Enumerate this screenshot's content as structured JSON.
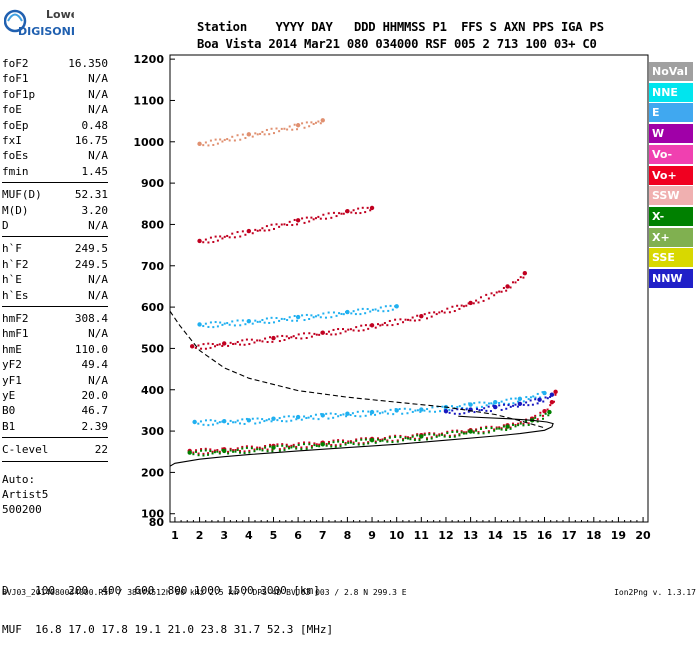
{
  "logo": {
    "line1": "Lowell",
    "line2": "DIGISONDE"
  },
  "header": {
    "labels": "Station    YYYY DAY   DDD HHMMSS P1  FFS S AXN PPS IGA PS",
    "values": "Boa Vista 2014 Mar21 080 034000 RSF 005 2 713 100 03+ C0"
  },
  "params": {
    "group1": [
      {
        "label": "foF2",
        "value": "16.350"
      },
      {
        "label": "foF1",
        "value": "N/A"
      },
      {
        "label": "foF1p",
        "value": "N/A"
      },
      {
        "label": "foE",
        "value": "N/A"
      },
      {
        "label": "foEp",
        "value": "0.48"
      },
      {
        "label": "fxI",
        "value": "16.75"
      },
      {
        "label": "foEs",
        "value": "N/A"
      },
      {
        "label": "fmin",
        "value": "1.45"
      }
    ],
    "group2": [
      {
        "label": "MUF(D)",
        "value": "52.31"
      },
      {
        "label": "M(D)",
        "value": "3.20"
      },
      {
        "label": "D",
        "value": "N/A"
      }
    ],
    "group3": [
      {
        "label": "h`F",
        "value": "249.5"
      },
      {
        "label": "h`F2",
        "value": "249.5"
      },
      {
        "label": "h`E",
        "value": "N/A"
      },
      {
        "label": "h`Es",
        "value": "N/A"
      }
    ],
    "group4": [
      {
        "label": "hmF2",
        "value": "308.4"
      },
      {
        "label": "hmF1",
        "value": "N/A"
      },
      {
        "label": "hmE",
        "value": "110.0"
      },
      {
        "label": "yF2",
        "value": "49.4"
      },
      {
        "label": "yF1",
        "value": "N/A"
      },
      {
        "label": "yE",
        "value": "20.0"
      },
      {
        "label": "B0",
        "value": "46.7"
      },
      {
        "label": "B1",
        "value": "2.39"
      }
    ],
    "group5": [
      {
        "label": "C-level",
        "value": "22"
      }
    ],
    "auto_lines": [
      "Auto:",
      "Artist5",
      "500200"
    ]
  },
  "freq_table": {
    "d_line": "D    100  200  400  600  800 1000 1500 3000 [km]",
    "muf_line": "MUF  16.8 17.0 17.8 19.1 21.0 23.8 31.7 52.3 [MHz]"
  },
  "footer": {
    "left": "BVJ03_2014080034000.RSF / 384fx512h 50 kHz 2.5 km / DPS-4D BVJ03 003 / 2.8 N 299.3 E",
    "right": "Ion2Png v. 1.3.17"
  },
  "legend": [
    {
      "label": "NoVal",
      "color": "#a0a0a0"
    },
    {
      "label": "NNE",
      "color": "#00e5ee"
    },
    {
      "label": "E",
      "color": "#40a8f0"
    },
    {
      "label": "W",
      "color": "#a000a8"
    },
    {
      "label": "Vo-",
      "color": "#f040b0"
    },
    {
      "label": "Vo+",
      "color": "#f00020"
    },
    {
      "label": "SSW",
      "color": "#f0b0b0"
    },
    {
      "label": "X-",
      "color": "#008000"
    },
    {
      "label": "X+",
      "color": "#80b050"
    },
    {
      "label": "SSE",
      "color": "#d8d800"
    },
    {
      "label": "NNW",
      "color": "#2020c8"
    }
  ],
  "chart_data": {
    "type": "scatter",
    "title": "",
    "xlabel": "",
    "ylabel": "",
    "xlim": [
      0.8,
      20.2
    ],
    "ylim": [
      80,
      1210
    ],
    "x_ticks": [
      1,
      2,
      3,
      4,
      5,
      6,
      7,
      8,
      9,
      10,
      11,
      12,
      13,
      14,
      15,
      16,
      17,
      18,
      19,
      20
    ],
    "y_ticks": [
      80,
      100,
      200,
      300,
      400,
      500,
      600,
      700,
      800,
      900,
      1000,
      1100,
      1200
    ],
    "x_tick_labels": [
      "1",
      "2",
      "3",
      "4",
      "5",
      "6",
      "7",
      "8",
      "9",
      "10",
      "11",
      "12",
      "13",
      "14",
      "15",
      "16",
      "17",
      "18",
      "19",
      "20"
    ],
    "y_tick_labels": [
      "80",
      "100",
      "200",
      "300",
      "400",
      "500",
      "600",
      "700",
      "800",
      "900",
      "1000",
      "1100",
      "1200"
    ],
    "grid": false,
    "legend_position": "right",
    "traces": [
      {
        "name": "F2 O-trace",
        "mode": "Vo+",
        "color": "#c80020",
        "points": [
          [
            1.6,
            252
          ],
          [
            3,
            256
          ],
          [
            5,
            264
          ],
          [
            7,
            272
          ],
          [
            9,
            281
          ],
          [
            11,
            290
          ],
          [
            13,
            302
          ],
          [
            14.5,
            314
          ],
          [
            15.5,
            330
          ],
          [
            16,
            348
          ],
          [
            16.3,
            370
          ],
          [
            16.45,
            395
          ]
        ]
      },
      {
        "name": "F2 X-trace",
        "mode": "X-",
        "color": "#008000",
        "points": [
          [
            1.6,
            248
          ],
          [
            3,
            252
          ],
          [
            5,
            260
          ],
          [
            7,
            268
          ],
          [
            9,
            278
          ],
          [
            11,
            287
          ],
          [
            13,
            299
          ],
          [
            14.5,
            311
          ],
          [
            15.5,
            326
          ],
          [
            16.2,
            346
          ]
        ]
      },
      {
        "name": "NNE echoes",
        "mode": "NNE",
        "color": "#20b0f0",
        "points": [
          [
            1.8,
            322
          ],
          [
            3,
            324
          ],
          [
            4,
            326
          ],
          [
            5,
            330
          ],
          [
            6,
            334
          ],
          [
            7,
            338
          ],
          [
            8,
            342
          ],
          [
            9,
            346
          ],
          [
            10,
            350
          ],
          [
            11,
            352
          ],
          [
            12,
            358
          ],
          [
            13,
            364
          ],
          [
            14,
            370
          ],
          [
            15,
            378
          ],
          [
            16,
            392
          ]
        ]
      },
      {
        "name": "NNW echoes",
        "mode": "NNW",
        "color": "#1818c0",
        "points": [
          [
            12,
            348
          ],
          [
            13,
            352
          ],
          [
            14,
            358
          ],
          [
            15,
            366
          ],
          [
            15.8,
            376
          ],
          [
            16.3,
            388
          ]
        ]
      },
      {
        "name": "Second-hop F",
        "mode": "Vo+",
        "color": "#c00020",
        "points": [
          [
            1.7,
            505
          ],
          [
            3,
            512
          ],
          [
            5,
            525
          ],
          [
            7,
            538
          ],
          [
            9,
            556
          ],
          [
            11,
            578
          ],
          [
            13,
            610
          ],
          [
            14.5,
            650
          ],
          [
            15.2,
            682
          ]
        ]
      },
      {
        "name": "Second-hop NNE",
        "mode": "NNE",
        "color": "#20b0f0",
        "points": [
          [
            2,
            558
          ],
          [
            4,
            566
          ],
          [
            6,
            576
          ],
          [
            8,
            588
          ],
          [
            10,
            602
          ]
        ]
      },
      {
        "name": "Third-hop F",
        "mode": "Vo+",
        "color": "#c00020",
        "points": [
          [
            2,
            760
          ],
          [
            4,
            784
          ],
          [
            6,
            810
          ],
          [
            8,
            832
          ],
          [
            9,
            840
          ]
        ]
      },
      {
        "name": "Fourth-hop F",
        "mode": "SSW",
        "color": "#e09070",
        "points": [
          [
            2,
            995
          ],
          [
            4,
            1018
          ],
          [
            6,
            1040
          ],
          [
            7,
            1052
          ]
        ]
      }
    ],
    "profile_curves": [
      {
        "name": "Electron density profile",
        "style": "solid",
        "color": "#000000",
        "points": [
          [
            0.8,
            215
          ],
          [
            1,
            222
          ],
          [
            2,
            232
          ],
          [
            3,
            238
          ],
          [
            4,
            243
          ],
          [
            6,
            252
          ],
          [
            8,
            260
          ],
          [
            10,
            268
          ],
          [
            12,
            278
          ],
          [
            14,
            288
          ],
          [
            15,
            294
          ],
          [
            16,
            302
          ],
          [
            16.3,
            310
          ],
          [
            16.35,
            318
          ],
          [
            16.1,
            322
          ],
          [
            15.5,
            326
          ],
          [
            14.5,
            330
          ],
          [
            13,
            334
          ],
          [
            12.5,
            336
          ]
        ]
      },
      {
        "name": "Model profile",
        "style": "dashed",
        "color": "#000000",
        "points": [
          [
            0.8,
            590
          ],
          [
            1.2,
            555
          ],
          [
            2,
            495
          ],
          [
            3,
            453
          ],
          [
            4,
            428
          ],
          [
            6,
            398
          ],
          [
            8,
            382
          ],
          [
            10,
            370
          ],
          [
            12,
            358
          ],
          [
            14,
            340
          ],
          [
            15,
            325
          ],
          [
            16,
            308
          ]
        ]
      }
    ]
  }
}
